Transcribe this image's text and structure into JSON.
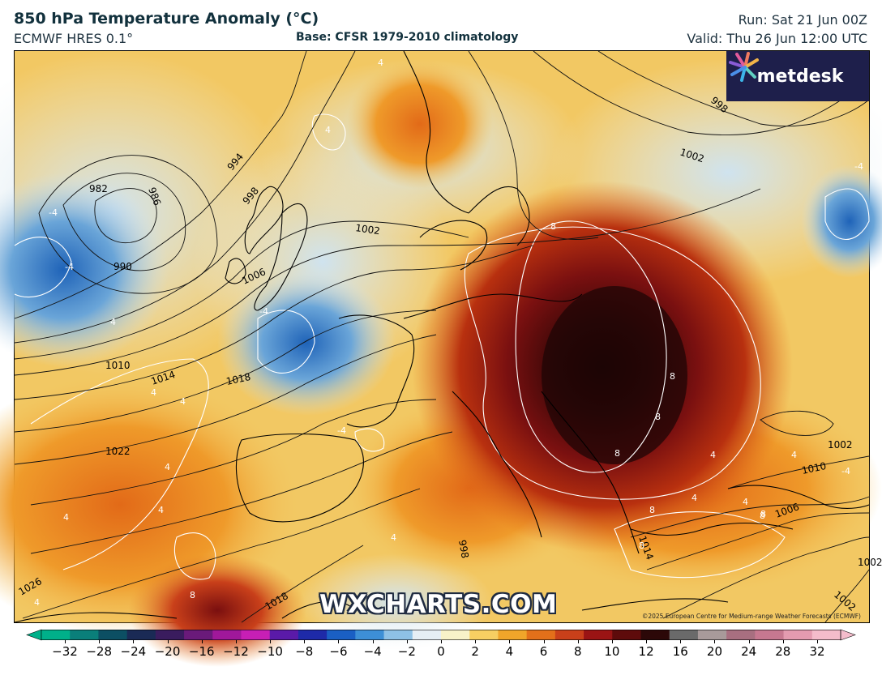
{
  "header": {
    "title": "850 hPa Temperature Anomaly (°C)",
    "model": "ECMWF HRES 0.1°",
    "base": "Base: CFSR 1979-2010 climatology",
    "run": "Run: Sat 21 Jun 00Z",
    "valid": "Valid: Thu 26 Jun 12:00 UTC"
  },
  "logo": {
    "text": "metdesk"
  },
  "watermark": "WXCHARTS.COM",
  "copyright": "©2025 European Centre for Medium-range Weather Forecasts (ECMWF)",
  "map": {
    "isobar_labels": [
      "982",
      "986",
      "990",
      "994",
      "998",
      "1002",
      "1006",
      "1010",
      "1014",
      "1018",
      "1022",
      "1026",
      "1018",
      "1002",
      "998",
      "1002",
      "1010",
      "1014",
      "1006",
      "1002",
      "998",
      "1002"
    ],
    "anomaly_labels": [
      "4",
      "4",
      "-4",
      "-4",
      "-4",
      "-4",
      "4",
      "4",
      "4",
      "4",
      "-4",
      "4",
      "4",
      "4",
      "8",
      "8",
      "8",
      "8",
      "8",
      "8",
      "8",
      "8",
      "4",
      "4",
      "4",
      "-4",
      "4",
      "8",
      "4"
    ]
  },
  "colorbar": {
    "ticks": [
      "−32",
      "−28",
      "−24",
      "−20",
      "−16",
      "−12",
      "−10",
      "−8",
      "−6",
      "−4",
      "−2",
      "0",
      "2",
      "4",
      "6",
      "8",
      "10",
      "12",
      "16",
      "20",
      "24",
      "28",
      "32"
    ],
    "colors": [
      "#00b08a",
      "#0a7f7a",
      "#0c4f63",
      "#1a2a55",
      "#3a1c5e",
      "#6a1a7a",
      "#a0189a",
      "#c71fb5",
      "#5a1aa8",
      "#1e2aa8",
      "#1a5fc4",
      "#3d8fd6",
      "#8ec1e6",
      "#e6eef5",
      "#f8f2c8",
      "#f7cf62",
      "#f0a52a",
      "#e3701a",
      "#c9401a",
      "#9a1414",
      "#5e0b0b",
      "#2c0808",
      "#6a6a6a",
      "#a89a9a",
      "#a86f80",
      "#c77890",
      "#e49bb0",
      "#f4bccb"
    ]
  }
}
